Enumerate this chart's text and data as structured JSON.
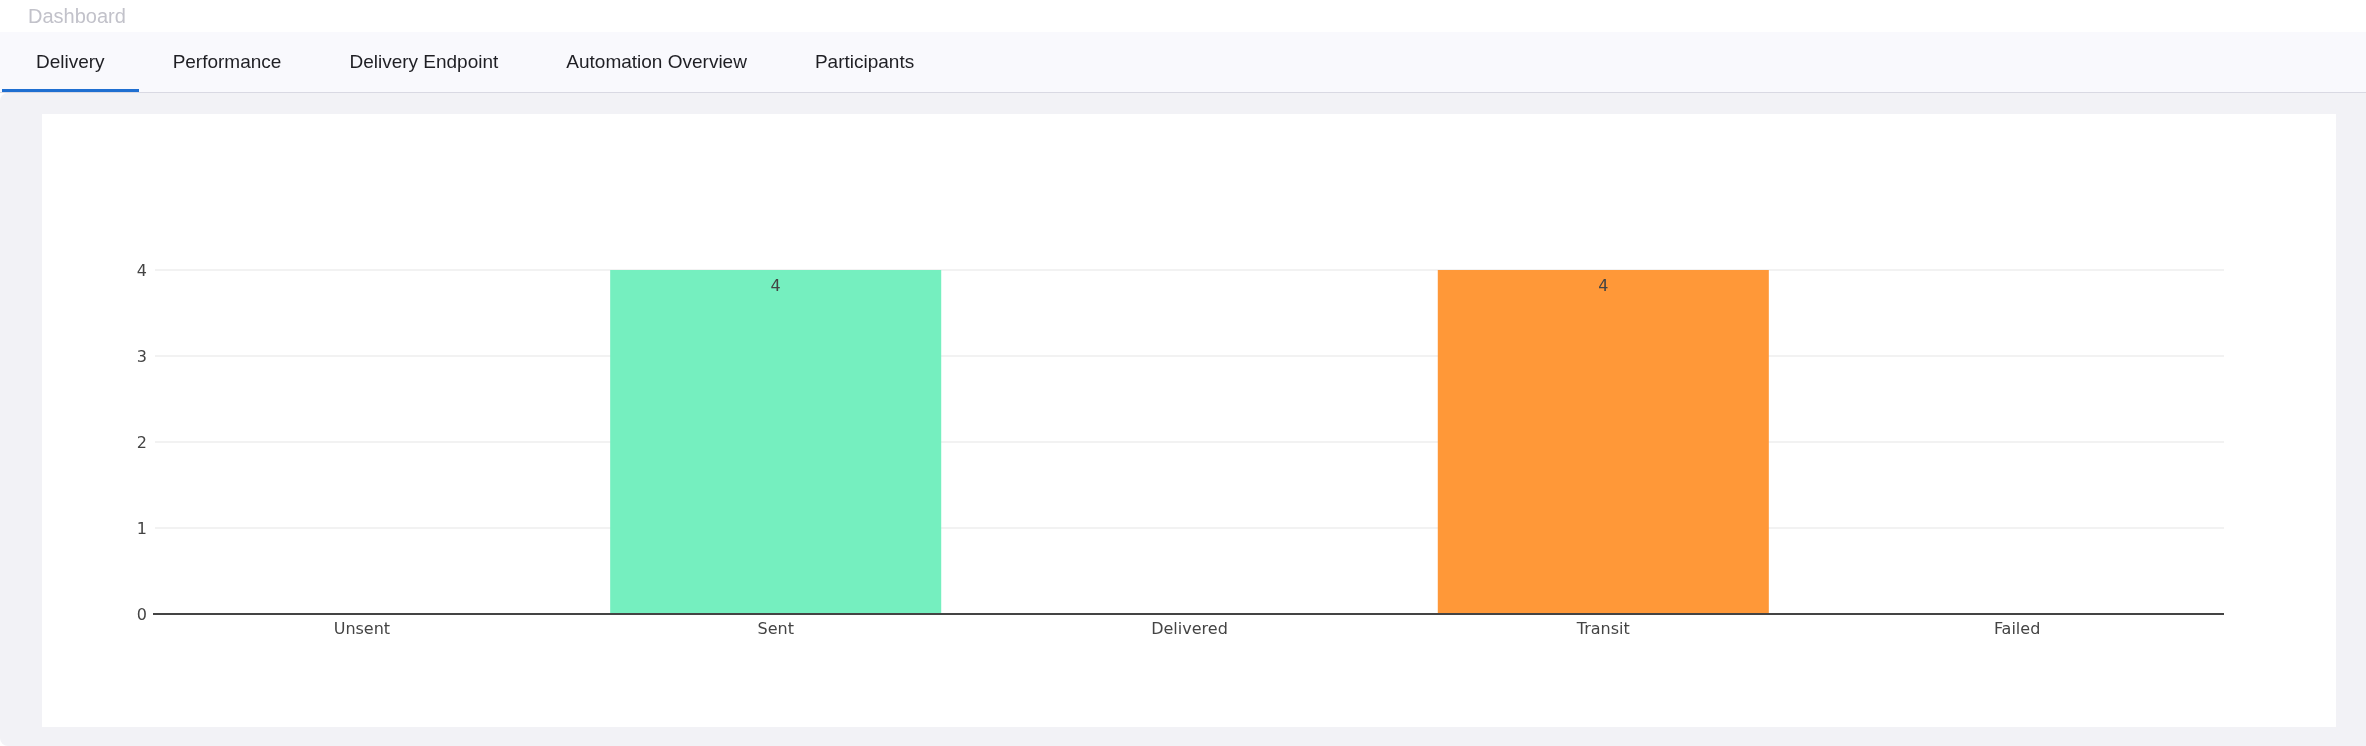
{
  "chart_data": {
    "type": "bar",
    "title": "Dashboard",
    "annotations": [
      "Delivery",
      "Performance",
      "Delivery Endpoint",
      "Automation Overview",
      "Participants"
    ],
    "categories": [
      "Unsent",
      "Sent",
      "Delivered",
      "Transit",
      "Failed"
    ],
    "values": [
      0,
      4,
      0,
      4,
      0
    ],
    "colors": [
      null,
      "#75efbf",
      null,
      "#ff9838",
      null
    ],
    "value_labels": [
      null,
      "4",
      null,
      "4",
      null
    ],
    "ylim": [
      0,
      4
    ],
    "yticks": [
      0,
      1,
      2,
      3,
      4
    ],
    "grid": "y"
  }
}
